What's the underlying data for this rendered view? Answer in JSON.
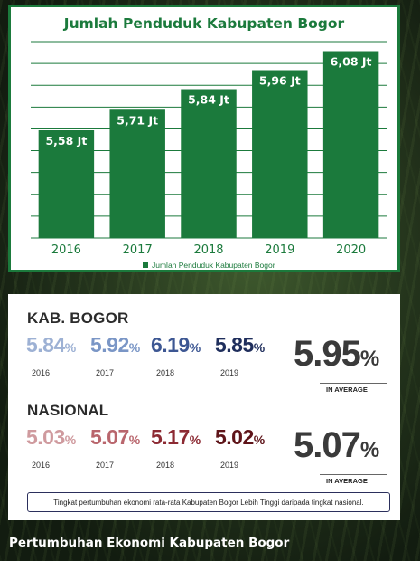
{
  "chart_data": {
    "type": "bar",
    "title": "Jumlah Penduduk Kabupaten Bogor",
    "categories": [
      "2016",
      "2017",
      "2018",
      "2019",
      "2020"
    ],
    "series": [
      {
        "name": "Jumlah Penduduk Kabupaten Bogor",
        "values": [
          5.58,
          5.71,
          5.84,
          5.96,
          6.08
        ]
      }
    ],
    "data_labels": [
      "5,58 Jt",
      "5,71 Jt",
      "5,84 Jt",
      "5,96 Jt",
      "6,08 Jt"
    ],
    "ylim": [
      4.9,
      6.14
    ],
    "grid": true,
    "legend_position": "bottom",
    "color": "#1b7a3c"
  },
  "growth": {
    "kab": {
      "title": "KAB. BOGOR",
      "items": [
        {
          "value": "5.84",
          "year": "2016",
          "color": "#9db1d4"
        },
        {
          "value": "5.92",
          "year": "2017",
          "color": "#7a96c6"
        },
        {
          "value": "6.19",
          "year": "2018",
          "color": "#3d5793"
        },
        {
          "value": "5.85",
          "year": "2019",
          "color": "#1f2e5c"
        }
      ],
      "average": "5.95",
      "average_label": "IN AVERAGE"
    },
    "nas": {
      "title": "NASIONAL",
      "items": [
        {
          "value": "5.03",
          "year": "2016",
          "color": "#cf9a9e"
        },
        {
          "value": "5.07",
          "year": "2017",
          "color": "#b9666d"
        },
        {
          "value": "5.17",
          "year": "2018",
          "color": "#8c2a33"
        },
        {
          "value": "5.02",
          "year": "2019",
          "color": "#5e1419"
        }
      ],
      "average": "5.07",
      "average_label": "IN AVERAGE"
    },
    "pct_symbol": "%",
    "note": "Tingkat pertumbuhan ekonomi rata-rata Kabupaten Bogor Lebih Tinggi daripada tingkat nasional."
  },
  "footer_title": "Pertumbuhan Ekonomi Kabupaten Bogor"
}
